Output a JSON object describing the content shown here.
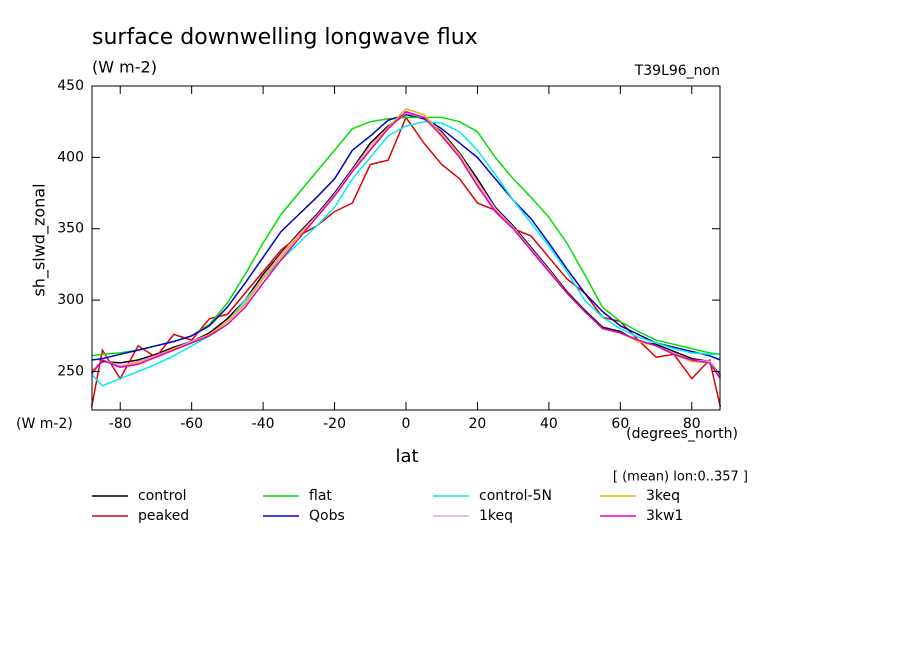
{
  "chart_data": {
    "type": "line",
    "title": "surface downwelling longwave flux",
    "subtitle": "(W m-2)",
    "tag": "T39L96_non",
    "y_label": "sh_slwd_zonal",
    "y_units": "(W m-2)",
    "x_label": "lat",
    "x_units": "(degrees_north)",
    "note": "[ (mean) lon:0..357 ]",
    "x": [
      -88,
      -85,
      -80,
      -75,
      -70,
      -65,
      -60,
      -55,
      -50,
      -45,
      -40,
      -35,
      -30,
      -25,
      -20,
      -15,
      -10,
      -5,
      0,
      5,
      10,
      15,
      20,
      25,
      30,
      35,
      40,
      45,
      50,
      55,
      60,
      65,
      70,
      75,
      80,
      85,
      88
    ],
    "xlim": [
      -87.9,
      87.9
    ],
    "xticks": [
      -80,
      -60,
      -40,
      -20,
      0,
      20,
      40,
      60,
      80
    ],
    "ylim": [
      223,
      450
    ],
    "yticks": [
      250,
      300,
      350,
      400,
      450
    ],
    "series": [
      {
        "name": "control",
        "color": "#000000",
        "values": [
          250,
          257,
          256,
          258,
          262,
          267,
          271,
          277,
          287,
          300,
          318,
          333,
          347,
          360,
          375,
          392,
          410,
          422,
          430,
          427,
          418,
          403,
          385,
          365,
          352,
          337,
          322,
          306,
          293,
          281,
          278,
          271,
          269,
          264,
          259,
          257,
          247
        ]
      },
      {
        "name": "peaked",
        "color": "#e00000",
        "values": [
          225,
          265,
          245,
          268,
          260,
          276,
          272,
          287,
          290,
          305,
          320,
          335,
          345,
          352,
          362,
          368,
          395,
          398,
          428,
          410,
          395,
          385,
          368,
          363,
          350,
          345,
          330,
          315,
          305,
          288,
          285,
          272,
          260,
          262,
          245,
          258,
          225
        ]
      },
      {
        "name": "flat",
        "color": "#00e000",
        "values": [
          261,
          262,
          263,
          265,
          268,
          271,
          275,
          283,
          298,
          318,
          340,
          360,
          375,
          390,
          405,
          420,
          425,
          427,
          428,
          428,
          428,
          425,
          418,
          400,
          385,
          372,
          358,
          340,
          318,
          295,
          285,
          278,
          272,
          269,
          266,
          263,
          262
        ]
      },
      {
        "name": "Qobs",
        "color": "#0000c8",
        "values": [
          258,
          259,
          262,
          265,
          268,
          271,
          275,
          282,
          295,
          312,
          330,
          348,
          360,
          372,
          385,
          405,
          415,
          426,
          430,
          428,
          420,
          410,
          400,
          385,
          370,
          357,
          340,
          322,
          305,
          292,
          282,
          276,
          270,
          267,
          264,
          261,
          258
        ]
      },
      {
        "name": "control-5N",
        "color": "#00eeee",
        "values": [
          248,
          240,
          245,
          250,
          255,
          261,
          268,
          275,
          285,
          300,
          315,
          328,
          340,
          352,
          365,
          385,
          400,
          415,
          422,
          425,
          424,
          418,
          405,
          388,
          370,
          354,
          338,
          320,
          300,
          288,
          280,
          274,
          270,
          266,
          263,
          262,
          262
        ]
      },
      {
        "name": "1keq",
        "color": "#e8a0d8",
        "values": [
          249,
          258,
          254,
          257,
          261,
          266,
          271,
          276,
          285,
          298,
          316,
          332,
          346,
          359,
          374,
          391,
          408,
          421,
          431,
          428,
          417,
          402,
          383,
          364,
          351,
          336,
          321,
          305,
          292,
          280,
          277,
          272,
          268,
          263,
          258,
          257,
          246
        ]
      },
      {
        "name": "3keq",
        "color": "#f0b000",
        "values": [
          249,
          258,
          253,
          256,
          260,
          266,
          270,
          276,
          285,
          297,
          315,
          330,
          345,
          358,
          373,
          390,
          406,
          421,
          434,
          430,
          416,
          401,
          381,
          362,
          350,
          335,
          320,
          305,
          292,
          280,
          277,
          271,
          268,
          262,
          257,
          256,
          245
        ]
      },
      {
        "name": "3kw1",
        "color": "#e000c8",
        "values": [
          248,
          258,
          253,
          255,
          260,
          265,
          270,
          275,
          283,
          295,
          312,
          328,
          343,
          358,
          373,
          390,
          405,
          420,
          432,
          428,
          415,
          400,
          380,
          362,
          350,
          335,
          320,
          305,
          292,
          280,
          277,
          272,
          268,
          262,
          258,
          256,
          245
        ]
      }
    ]
  }
}
